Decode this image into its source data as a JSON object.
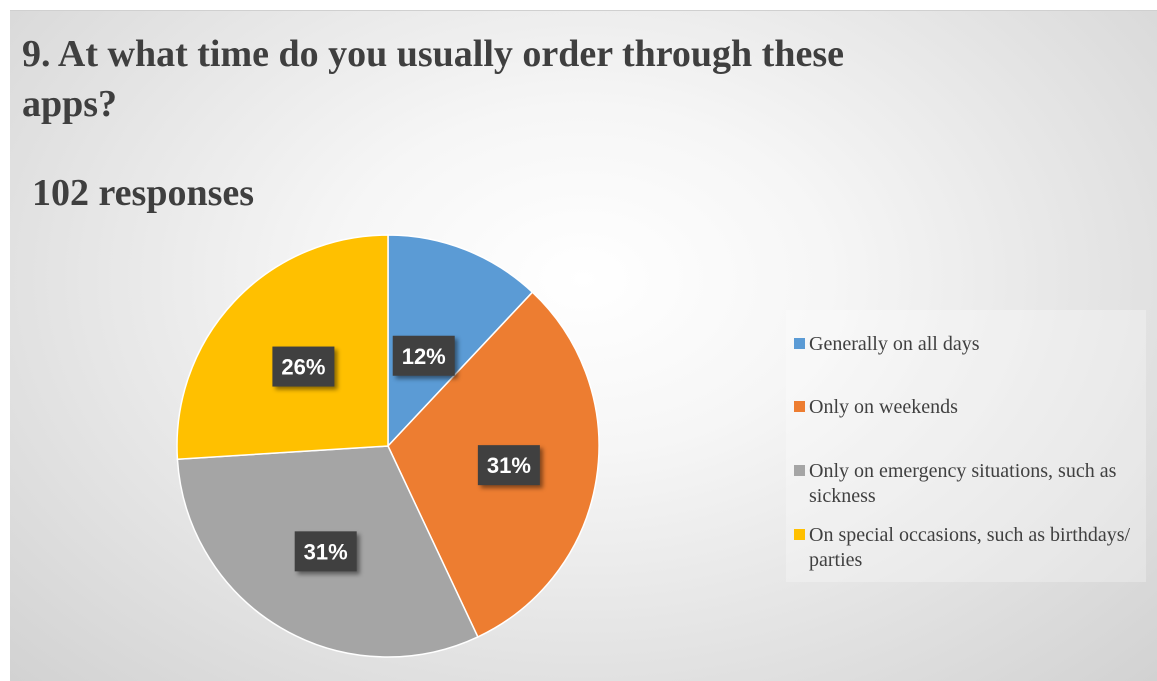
{
  "chart_data": {
    "type": "pie",
    "title": "9. At what time do you usually order through these apps?",
    "subtitle": "102 responses",
    "categories": [
      "Generally on all days",
      "Only on weekends",
      "Only on emergency situations, such as sickness",
      "On special occasions, such as birthdays/ parties"
    ],
    "values": [
      12,
      31,
      31,
      26
    ],
    "data_labels": [
      "12%",
      "31%",
      "31%",
      "26%"
    ],
    "colors": [
      "#5b9bd5",
      "#ed7d31",
      "#a5a5a5",
      "#ffc000"
    ],
    "legend_position": "right",
    "start_angle": "top-clockwise"
  }
}
